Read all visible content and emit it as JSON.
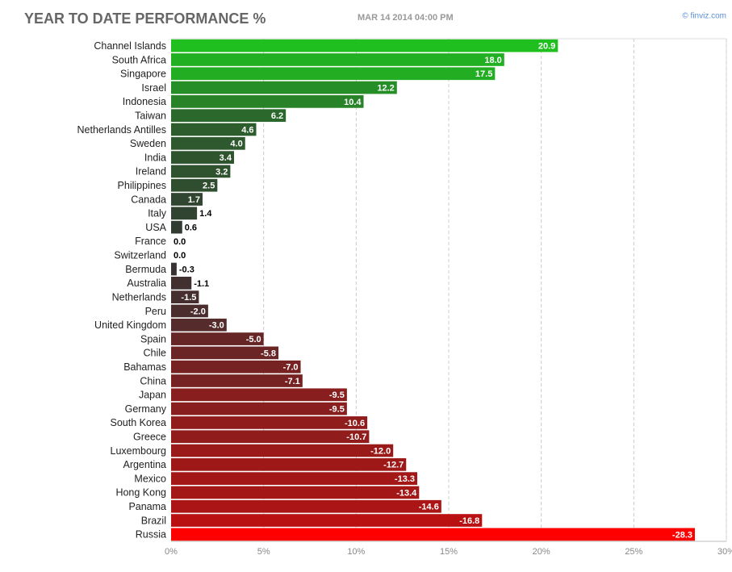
{
  "chart_data": {
    "type": "bar",
    "orientation": "horizontal",
    "title": "YEAR TO DATE PERFORMANCE %",
    "subtitle": "MAR 14 2014 04:00 PM",
    "source": "© finviz.com",
    "categories": [
      "Channel Islands",
      "South Africa",
      "Singapore",
      "Israel",
      "Indonesia",
      "Taiwan",
      "Netherlands Antilles",
      "Sweden",
      "India",
      "Ireland",
      "Philippines",
      "Canada",
      "Italy",
      "USA",
      "France",
      "Switzerland",
      "Bermuda",
      "Australia",
      "Netherlands",
      "Peru",
      "United Kingdom",
      "Spain",
      "Chile",
      "Bahamas",
      "China",
      "Japan",
      "Germany",
      "South Korea",
      "Greece",
      "Luxembourg",
      "Argentina",
      "Mexico",
      "Hong Kong",
      "Panama",
      "Brazil",
      "Russia"
    ],
    "values": [
      20.9,
      18.0,
      17.5,
      12.2,
      10.4,
      6.2,
      4.6,
      4.0,
      3.4,
      3.2,
      2.5,
      1.7,
      1.4,
      0.6,
      0.0,
      0.0,
      -0.3,
      -1.1,
      -1.5,
      -2.0,
      -3.0,
      -5.0,
      -5.8,
      -7.0,
      -7.1,
      -9.5,
      -9.5,
      -10.6,
      -10.7,
      -12.0,
      -12.7,
      -13.3,
      -13.4,
      -14.6,
      -16.8,
      -28.3
    ],
    "value_labels": [
      "20.9",
      "18.0",
      "17.5",
      "12.2",
      "10.4",
      "6.2",
      "4.6",
      "4.0",
      "3.4",
      "3.2",
      "2.5",
      "1.7",
      "1.4",
      "0.6",
      "0.0",
      "0.0",
      "-0.3",
      "-1.1",
      "-1.5",
      "-2.0",
      "-3.0",
      "-5.0",
      "-5.8",
      "-7.0",
      "-7.1",
      "-9.5",
      "-9.5",
      "-10.6",
      "-10.7",
      "-12.0",
      "-12.7",
      "-13.3",
      "-13.4",
      "-14.6",
      "-16.8",
      "-28.3"
    ],
    "bar_length": "absolute",
    "color_positive_max": "#1fc01f",
    "color_zero": "#333333",
    "color_negative_max": "#ff0000",
    "xlim": [
      0,
      30
    ],
    "xticks": [
      {
        "value": 0,
        "label": "0%"
      },
      {
        "value": 5,
        "label": "5%"
      },
      {
        "value": 10,
        "label": "10%"
      },
      {
        "value": 15,
        "label": "15%"
      },
      {
        "value": 20,
        "label": "20%"
      },
      {
        "value": 25,
        "label": "25%"
      },
      {
        "value": 30,
        "label": "30%"
      }
    ],
    "grid": true
  }
}
